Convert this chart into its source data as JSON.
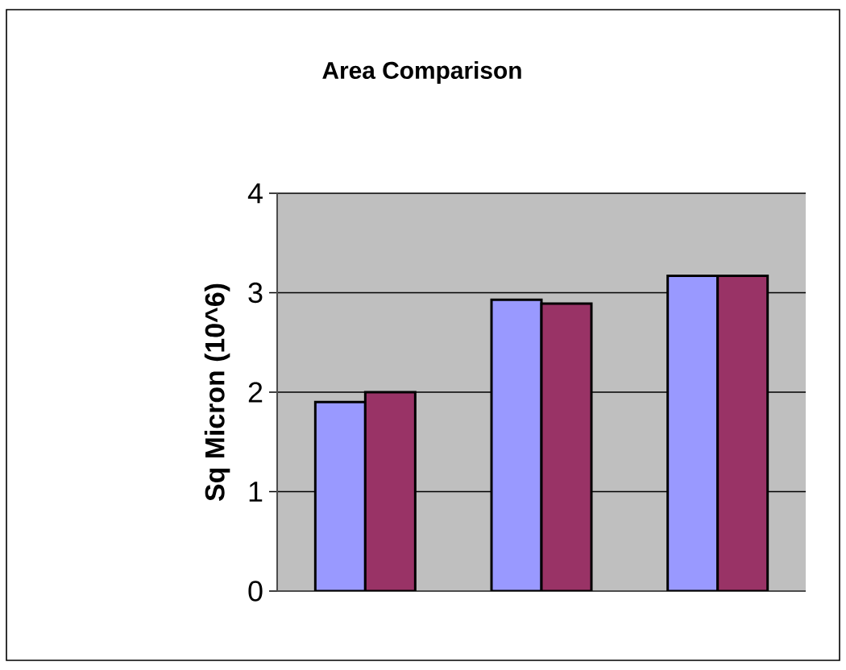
{
  "chart_data": {
    "type": "bar",
    "title": "Area Comparison",
    "ylabel": "Sq Micron (10^6)",
    "categories": [
      null,
      null,
      null
    ],
    "series": [
      {
        "color": "#9999ff",
        "values": [
          1.9,
          2.93,
          3.17
        ]
      },
      {
        "color": "#993366",
        "values": [
          2.0,
          2.89,
          3.17
        ]
      }
    ],
    "ylim": [
      0,
      4
    ],
    "yticks": [
      0,
      1,
      2,
      3,
      4
    ],
    "grid": "y"
  }
}
